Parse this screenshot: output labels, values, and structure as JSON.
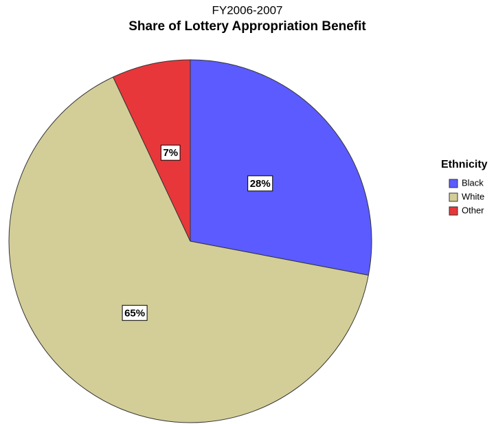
{
  "chart_data": {
    "type": "pie",
    "subtitle": "FY2006-2007",
    "title": "Share of Lottery Appropriation Benefit",
    "legend_title": "Ethnicity",
    "categories": [
      "Black",
      "White",
      "Other"
    ],
    "values": [
      28,
      65,
      7
    ],
    "value_labels": [
      "28%",
      "65%",
      "7%"
    ],
    "colors": [
      "#5b5bff",
      "#d3ce98",
      "#e8373a"
    ]
  }
}
